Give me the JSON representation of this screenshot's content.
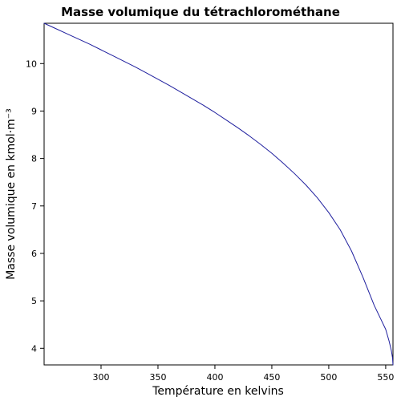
{
  "chart_data": {
    "type": "line",
    "title": "Masse volumique du tétrachlorométhane",
    "xlabel": "Température en kelvins",
    "ylabel": "Masse volumique en kmol·m⁻³",
    "xlim": [
      250,
      556.4
    ],
    "ylim": [
      3.65,
      10.85
    ],
    "xticks": [
      300,
      350,
      400,
      450,
      500,
      550
    ],
    "yticks": [
      4,
      5,
      6,
      7,
      8,
      9,
      10
    ],
    "grid": false,
    "series": [
      {
        "color": "#1f1f9e",
        "x": [
          250,
          260,
          270,
          280,
          290,
          300,
          310,
          320,
          330,
          340,
          350,
          360,
          370,
          380,
          390,
          400,
          410,
          420,
          430,
          440,
          450,
          460,
          470,
          480,
          490,
          500,
          510,
          520,
          530,
          540,
          545,
          550,
          553,
          555,
          556,
          556.4
        ],
        "y": [
          10.85,
          10.74,
          10.63,
          10.52,
          10.41,
          10.29,
          10.17,
          10.05,
          9.93,
          9.8,
          9.67,
          9.54,
          9.4,
          9.26,
          9.12,
          8.97,
          8.81,
          8.65,
          8.48,
          8.3,
          8.11,
          7.9,
          7.68,
          7.44,
          7.17,
          6.86,
          6.5,
          6.05,
          5.5,
          4.9,
          4.65,
          4.4,
          4.15,
          3.95,
          3.8,
          3.65
        ]
      }
    ]
  }
}
